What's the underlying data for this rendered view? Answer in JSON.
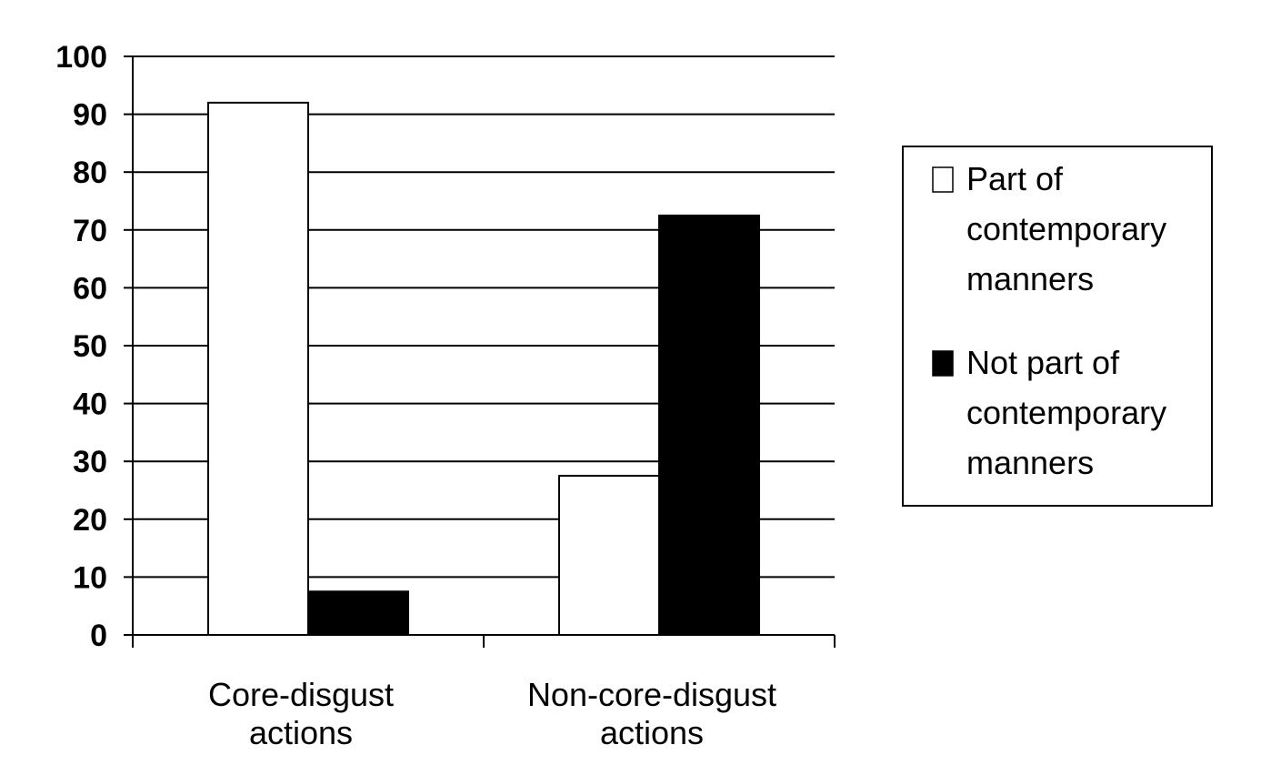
{
  "chart_data": {
    "type": "bar",
    "categories": [
      [
        "Core-disgust",
        "actions"
      ],
      [
        "Non-core-disgust",
        "actions"
      ]
    ],
    "series": [
      {
        "name": [
          "Part of",
          "contemporary",
          "manners"
        ],
        "values": [
          92,
          27.5
        ],
        "color": "#ffffff"
      },
      {
        "name": [
          "Not part of",
          "contemporary",
          "manners"
        ],
        "values": [
          7.5,
          72.5
        ],
        "color": "#000000"
      }
    ],
    "y_ticks": [
      "0",
      "10",
      "20",
      "30",
      "40",
      "50",
      "60",
      "70",
      "80",
      "90",
      "100"
    ],
    "ylim": [
      0,
      100
    ],
    "grid": true,
    "legend_position": "right"
  }
}
